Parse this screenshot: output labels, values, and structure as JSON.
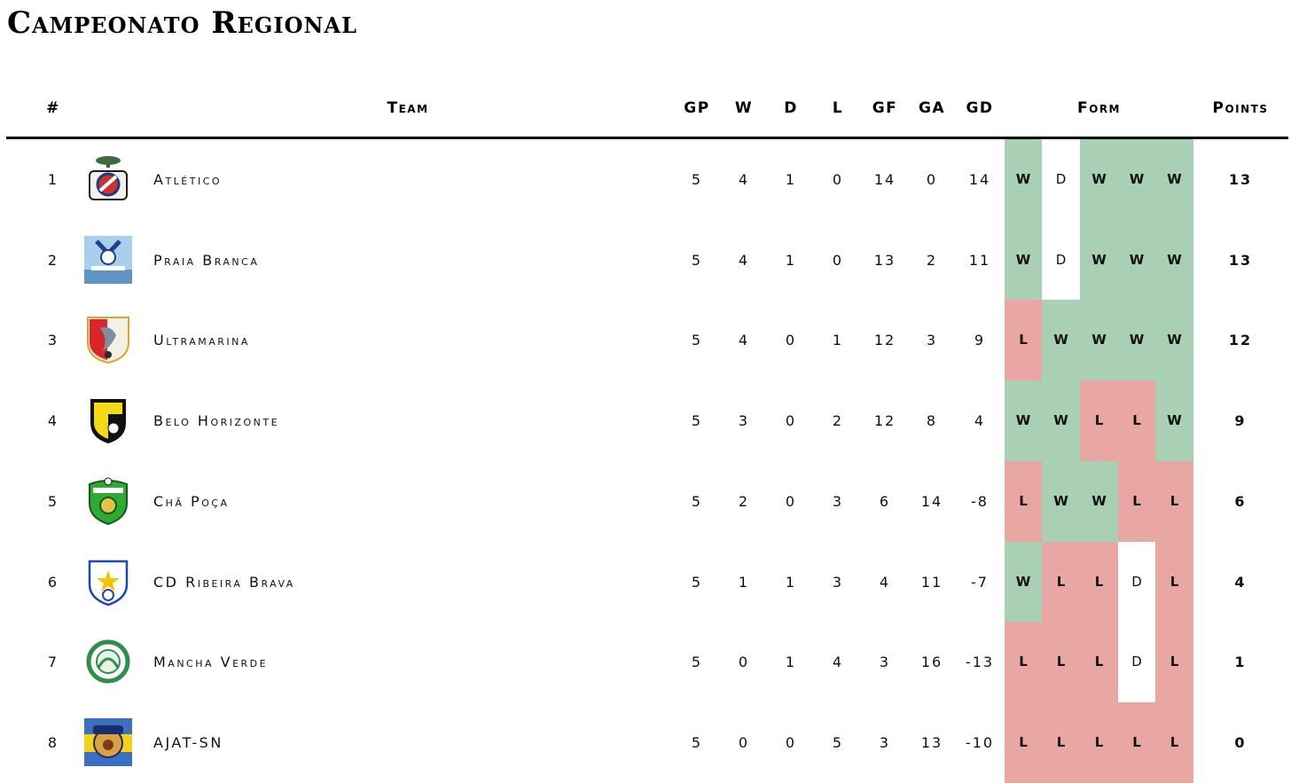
{
  "title": "Campeonato Regional",
  "headers": {
    "rank": "#",
    "team": "Team",
    "gp": "GP",
    "w": "W",
    "d": "D",
    "l": "L",
    "gf": "GF",
    "ga": "GA",
    "gd": "GD",
    "form": "Form",
    "points": "Points"
  },
  "colors": {
    "win": "#a9cfb4",
    "loss": "#e9a7a3",
    "draw": "#ffffff"
  },
  "rows": [
    {
      "rank": "1",
      "team": "Atlético",
      "logo": "atletico-crest",
      "gp": "5",
      "w": "4",
      "d": "1",
      "l": "0",
      "gf": "14",
      "ga": "0",
      "gd": "14",
      "form": [
        "W",
        "D",
        "W",
        "W",
        "W"
      ],
      "points": "13"
    },
    {
      "rank": "2",
      "team": "Praia Branca",
      "logo": "praia-branca-crest",
      "gp": "5",
      "w": "4",
      "d": "1",
      "l": "0",
      "gf": "13",
      "ga": "2",
      "gd": "11",
      "form": [
        "W",
        "D",
        "W",
        "W",
        "W"
      ],
      "points": "13"
    },
    {
      "rank": "3",
      "team": "Ultramarina",
      "logo": "ultramarina-crest",
      "gp": "5",
      "w": "4",
      "d": "0",
      "l": "1",
      "gf": "12",
      "ga": "3",
      "gd": "9",
      "form": [
        "L",
        "W",
        "W",
        "W",
        "W"
      ],
      "points": "12"
    },
    {
      "rank": "4",
      "team": "Belo Horizonte",
      "logo": "belo-horizonte-crest",
      "gp": "5",
      "w": "3",
      "d": "0",
      "l": "2",
      "gf": "12",
      "ga": "8",
      "gd": "4",
      "form": [
        "W",
        "W",
        "L",
        "L",
        "W"
      ],
      "points": "9"
    },
    {
      "rank": "5",
      "team": "Chã Poça",
      "logo": "cha-poca-crest",
      "gp": "5",
      "w": "2",
      "d": "0",
      "l": "3",
      "gf": "6",
      "ga": "14",
      "gd": "-8",
      "form": [
        "L",
        "W",
        "W",
        "L",
        "L"
      ],
      "points": "6"
    },
    {
      "rank": "6",
      "team": "CD Ribeira Brava",
      "logo": "ribeira-brava-crest",
      "gp": "5",
      "w": "1",
      "d": "1",
      "l": "3",
      "gf": "4",
      "ga": "11",
      "gd": "-7",
      "form": [
        "W",
        "L",
        "L",
        "D",
        "L"
      ],
      "points": "4"
    },
    {
      "rank": "7",
      "team": "Mancha Verde",
      "logo": "mancha-verde-crest",
      "gp": "5",
      "w": "0",
      "d": "1",
      "l": "4",
      "gf": "3",
      "ga": "16",
      "gd": "-13",
      "form": [
        "L",
        "L",
        "L",
        "D",
        "L"
      ],
      "points": "1"
    },
    {
      "rank": "8",
      "team": "AJAT-SN",
      "logo": "ajat-sn-crest",
      "gp": "5",
      "w": "0",
      "d": "0",
      "l": "5",
      "gf": "3",
      "ga": "13",
      "gd": "-10",
      "form": [
        "L",
        "L",
        "L",
        "L",
        "L"
      ],
      "points": "0"
    }
  ]
}
